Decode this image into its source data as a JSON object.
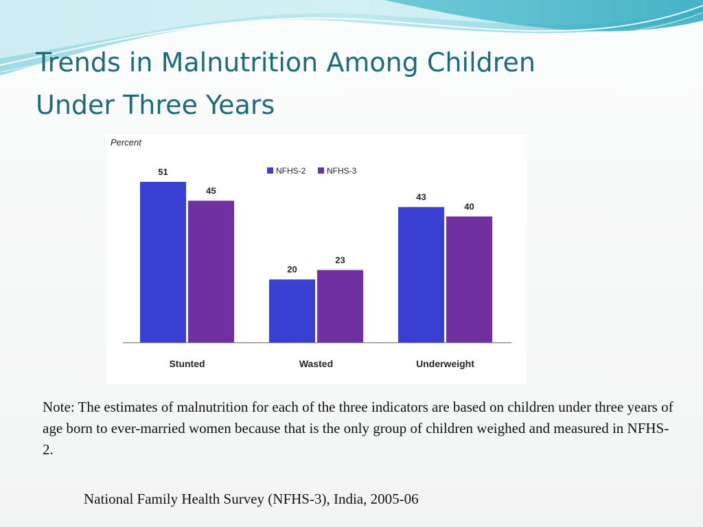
{
  "slide": {
    "title_lines": [
      "Trends in Malnutrition Among Children",
      "Under Three Years"
    ],
    "note": "Note: The estimates of malnutrition for each of the three indicators are based on children under three years of age born to ever-married women because that is the only group of children weighed and measured in NFHS-2.",
    "source": "National Family Health Survey (NFHS-3), India, 2005-06",
    "colors": {
      "title": "#1d6a7a",
      "wave_light": "#bfe6ec",
      "wave_mid": "#7fcfdc",
      "wave_dark": "#3fb6c8"
    }
  },
  "chart_data": {
    "type": "bar",
    "ylabel": "Percent",
    "xlabel": "",
    "categories": [
      "Stunted",
      "Wasted",
      "Underweight"
    ],
    "series": [
      {
        "name": "NFHS-2",
        "values": [
          51,
          20,
          43
        ],
        "color": "#3a3fd4"
      },
      {
        "name": "NFHS-3",
        "values": [
          45,
          23,
          40
        ],
        "color": "#7030a0"
      }
    ],
    "ylim": [
      0,
      60
    ],
    "grid": false,
    "legend_position": "top-center",
    "data_labels": true
  }
}
